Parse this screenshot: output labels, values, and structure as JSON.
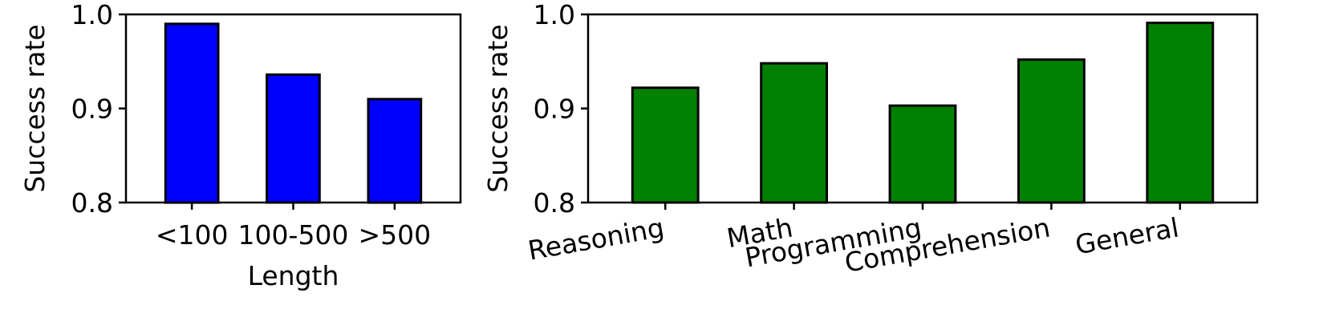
{
  "chart_data": [
    {
      "type": "bar",
      "categories": [
        "<100",
        "100-500",
        ">500"
      ],
      "values": [
        0.99,
        0.936,
        0.91
      ],
      "bar_color": "#0000ff",
      "xlabel": "Length",
      "ylabel": "Success rate",
      "ylim": [
        0.8,
        1.0
      ],
      "yticks": [
        "0.8",
        "0.9",
        "1.0"
      ],
      "grid": false
    },
    {
      "type": "bar",
      "categories": [
        "Reasoning",
        "Math",
        "Programming",
        "Comprehension",
        "General"
      ],
      "values": [
        0.922,
        0.948,
        0.903,
        0.952,
        0.991
      ],
      "bar_color": "#008000",
      "xlabel": "",
      "ylabel": "Success rate",
      "ylim": [
        0.8,
        1.0
      ],
      "yticks": [
        "0.8",
        "0.9",
        "1.0"
      ],
      "grid": false
    }
  ]
}
